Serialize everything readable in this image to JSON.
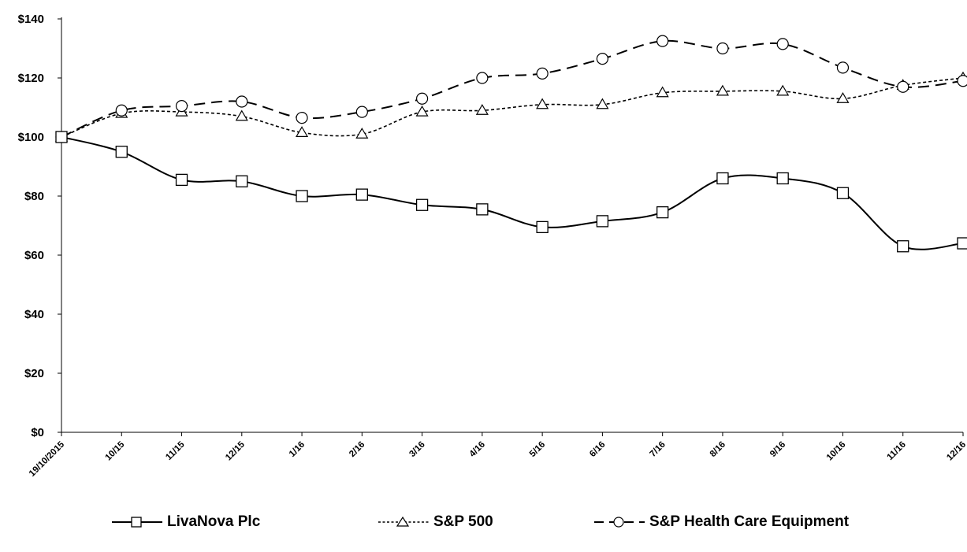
{
  "chart_data": {
    "type": "line",
    "title": "",
    "xlabel": "",
    "ylabel": "",
    "categories": [
      "19/10/2015",
      "10/15",
      "11/15",
      "12/15",
      "1/16",
      "2/16",
      "3/16",
      "4/16",
      "5/16",
      "6/16",
      "7/16",
      "8/16",
      "9/16",
      "10/16",
      "11/16",
      "12/16"
    ],
    "ylim": [
      0,
      140
    ],
    "yticks": [
      0,
      20,
      40,
      60,
      80,
      100,
      120,
      140
    ],
    "ytick_labels": [
      "$0",
      "$20",
      "$40",
      "$60",
      "$80",
      "$100",
      "$120",
      "$140"
    ],
    "grid": false,
    "legend_position": "bottom",
    "series": [
      {
        "name": "LivaNova Plc",
        "marker": "square",
        "line_style": "solid",
        "color": "#000000",
        "values": [
          100,
          95,
          85.5,
          85,
          80,
          80.5,
          77,
          75.5,
          69.5,
          71.5,
          74.5,
          86,
          86,
          81,
          63,
          64
        ]
      },
      {
        "name": "S&P 500",
        "marker": "triangle",
        "line_style": "dotted",
        "color": "#000000",
        "values": [
          100,
          108,
          108.5,
          107,
          101.5,
          101,
          108.5,
          109,
          111,
          111,
          115,
          115.5,
          115.5,
          113,
          117.5,
          120
        ]
      },
      {
        "name": "S&P Health Care Equipment",
        "marker": "circle",
        "line_style": "dashed",
        "color": "#000000",
        "values": [
          100,
          109,
          110.5,
          112,
          106.5,
          108.5,
          113,
          120,
          121.5,
          126.5,
          132.5,
          130,
          131.5,
          123.5,
          117,
          119
        ]
      }
    ]
  }
}
